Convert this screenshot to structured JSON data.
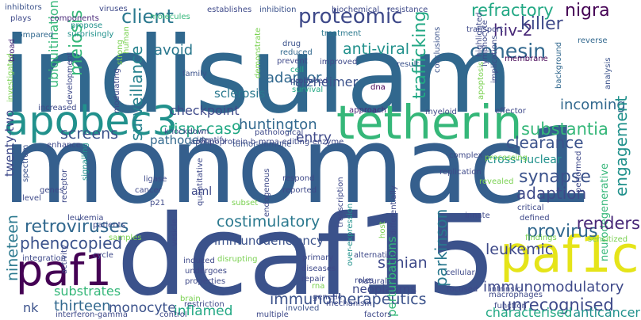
{
  "words": [
    {
      "t": "indisulam",
      "c": "#31688e"
    },
    {
      "t": "monomac1",
      "c": "#355f8d"
    },
    {
      "t": "dcaf15",
      "c": "#3b528b"
    },
    {
      "t": "tetherin",
      "c": "#35b779"
    },
    {
      "t": "apobec3",
      "c": "#21918c"
    },
    {
      "t": "paf1c",
      "c": "#e5e419"
    },
    {
      "t": "paf1",
      "c": "#440154"
    },
    {
      "t": "proteomic",
      "c": "#3e4989"
    },
    {
      "t": "client",
      "c": "#2a788e"
    },
    {
      "t": "adaptor",
      "c": "#31688e"
    },
    {
      "t": "refractory",
      "c": "#22a884"
    },
    {
      "t": "hiv-2",
      "c": "#482878"
    },
    {
      "t": "nigra",
      "c": "#440154"
    },
    {
      "t": "killer",
      "c": "#3e4989"
    },
    {
      "t": "cohesin",
      "c": "#31688e"
    },
    {
      "t": "anti-viral",
      "c": "#21918c"
    },
    {
      "t": "meiosis",
      "c": "#35b779"
    },
    {
      "t": "avoid",
      "c": "#2a788e"
    },
    {
      "t": "sclerosis",
      "c": "#2a788e"
    },
    {
      "t": "surveillance",
      "c": "#26828e"
    },
    {
      "t": "trafficking",
      "c": "#22a884"
    },
    {
      "t": "incoming",
      "c": "#31688e"
    },
    {
      "t": "substantia",
      "c": "#35b779"
    },
    {
      "t": "clearance",
      "c": "#3b528b"
    },
    {
      "t": "cross-nuclear",
      "c": "#21918c"
    },
    {
      "t": "engagement",
      "c": "#21918c"
    },
    {
      "t": "synapse",
      "c": "#3b528b"
    },
    {
      "t": "adaption",
      "c": "#3e4989"
    },
    {
      "t": "neurodegenerative",
      "c": "#35b779"
    },
    {
      "t": "huntington",
      "c": "#31688e"
    },
    {
      "t": "checkpoint",
      "c": "#3e4989"
    },
    {
      "t": "crispr-cas9",
      "c": "#22a884"
    },
    {
      "t": "screens",
      "c": "#3b528b"
    },
    {
      "t": "pathogen",
      "c": "#31688e"
    },
    {
      "t": "entry",
      "c": "#3e4989"
    },
    {
      "t": "alzheimer",
      "c": "#3b528b"
    },
    {
      "t": "ubiquitination",
      "c": "#35b779"
    },
    {
      "t": "twenty-two",
      "c": "#3e4989"
    },
    {
      "t": "retroviruses",
      "c": "#31688e"
    },
    {
      "t": "phenocopied",
      "c": "#3b528b"
    },
    {
      "t": "costimulatory",
      "c": "#2a788e"
    },
    {
      "t": "immunodeficiency",
      "c": "#3b528b"
    },
    {
      "t": "aml",
      "c": "#3e4989"
    },
    {
      "t": "provirus",
      "c": "#31688e"
    },
    {
      "t": "renders",
      "c": "#482878"
    },
    {
      "t": "leukemic",
      "c": "#3e4989"
    },
    {
      "t": "simian",
      "c": "#3e4989"
    },
    {
      "t": "immunomodulatory",
      "c": "#3e4989"
    },
    {
      "t": "parkinson",
      "c": "#2a788e"
    },
    {
      "t": "unrecognised",
      "c": "#3e4989"
    },
    {
      "t": "characterised",
      "c": "#22a884"
    },
    {
      "t": "nineteen",
      "c": "#2a788e"
    },
    {
      "t": "thirteen",
      "c": "#31688e"
    },
    {
      "t": "inflamed",
      "c": "#22a884"
    },
    {
      "t": "immunotherapeutics",
      "c": "#3b528b"
    },
    {
      "t": "neoplasms",
      "c": "#3e4989"
    },
    {
      "t": "substrates",
      "c": "#35b779"
    },
    {
      "t": "monocyte",
      "c": "#3b528b"
    },
    {
      "t": "nk",
      "c": "#3b528b"
    },
    {
      "t": "anticancer",
      "c": "#21918c"
    },
    {
      "t": "perturbations",
      "c": "#35b779"
    },
    {
      "t": "interferon-gamma",
      "c": "#3e4989"
    },
    {
      "t": "apolipoprotein-b-mrna-editing-enzyme",
      "c": "#3e4989"
    },
    {
      "t": "tumor-immune",
      "c": "#3b528b"
    },
    {
      "t": "over-expression",
      "c": "#21918c"
    },
    {
      "t": "inhibitors",
      "c": "#3b528b"
    },
    {
      "t": "plays",
      "c": "#3e4989"
    },
    {
      "t": "components",
      "c": "#482878"
    },
    {
      "t": "viruses",
      "c": "#3e4989"
    },
    {
      "t": "molecules",
      "c": "#35b779"
    },
    {
      "t": "establishes",
      "c": "#3e4989"
    },
    {
      "t": "inhibition",
      "c": "#3b528b"
    },
    {
      "t": "biochemical",
      "c": "#3e4989"
    },
    {
      "t": "resistance",
      "c": "#3e4989"
    },
    {
      "t": "transport",
      "c": "#3e4989"
    },
    {
      "t": "propose",
      "c": "#21918c"
    },
    {
      "t": "compared",
      "c": "#31688e"
    },
    {
      "t": "surprisingly",
      "c": "#21918c"
    },
    {
      "t": "treatment",
      "c": "#2a788e"
    },
    {
      "t": "drug",
      "c": "#3b528b"
    },
    {
      "t": "reduced",
      "c": "#31688e"
    },
    {
      "t": "prevent",
      "c": "#3e4989"
    },
    {
      "t": "cell",
      "c": "#22a884"
    },
    {
      "t": "produced",
      "c": "#3e4989"
    },
    {
      "t": "survival",
      "c": "#22a884"
    },
    {
      "t": "improved",
      "c": "#3e4989"
    },
    {
      "t": "dna",
      "c": "#440154"
    },
    {
      "t": "result",
      "c": "#3b528b"
    },
    {
      "t": "investigated",
      "c": "#7ad151"
    },
    {
      "t": "broad",
      "c": "#482878"
    },
    {
      "t": "strong",
      "c": "#7ad151"
    },
    {
      "t": "human",
      "c": "#7ad151"
    },
    {
      "t": "family",
      "c": "#3b528b"
    },
    {
      "t": "development",
      "c": "#3e4989"
    },
    {
      "t": "demonstrate",
      "c": "#7ad151"
    },
    {
      "t": "conclusions",
      "c": "#3b528b"
    },
    {
      "t": "implications",
      "c": "#3e4989"
    },
    {
      "t": "lymphocyte",
      "c": "#3e4989"
    },
    {
      "t": "membrane",
      "c": "#440154"
    },
    {
      "t": "background",
      "c": "#31688e"
    },
    {
      "t": "analysis",
      "c": "#3b528b"
    },
    {
      "t": "reverse",
      "c": "#31688e"
    },
    {
      "t": "highlighted",
      "c": "#3e4989"
    },
    {
      "t": "involved",
      "c": "#3b528b"
    },
    {
      "t": "apoptosis",
      "c": "#7ad151"
    },
    {
      "t": "increased",
      "c": "#3e4989"
    },
    {
      "t": "modulating",
      "c": "#3e4989"
    },
    {
      "t": "approach",
      "c": "#482878"
    },
    {
      "t": "myeloid",
      "c": "#3e4989"
    },
    {
      "t": "effector",
      "c": "#3e4989"
    },
    {
      "t": "enhance",
      "c": "#3e4989"
    },
    {
      "t": "knockdown",
      "c": "#3e4989"
    },
    {
      "t": "pathological",
      "c": "#3e4989"
    },
    {
      "t": "identify",
      "c": "#3e4989"
    },
    {
      "t": "complex",
      "c": "#3e4989"
    },
    {
      "t": "processing",
      "c": "#7ad151"
    },
    {
      "t": "spectrum",
      "c": "#3b528b"
    },
    {
      "t": "signalling",
      "c": "#21918c"
    },
    {
      "t": "genes",
      "c": "#3e4989"
    },
    {
      "t": "ligase",
      "c": "#3e4989"
    },
    {
      "t": "cancer",
      "c": "#3e4989"
    },
    {
      "t": "p21",
      "c": "#3e4989"
    },
    {
      "t": "quantitative",
      "c": "#3e4989"
    },
    {
      "t": "respond",
      "c": "#3e4989"
    },
    {
      "t": "reported",
      "c": "#3e4989"
    },
    {
      "t": "replication",
      "c": "#3e4989"
    },
    {
      "t": "revealed",
      "c": "#7ad151"
    },
    {
      "t": "performed",
      "c": "#3e4989"
    },
    {
      "t": "receptor",
      "c": "#3e4989"
    },
    {
      "t": "level",
      "c": "#3e4989"
    },
    {
      "t": "endogenous",
      "c": "#3e4989"
    },
    {
      "t": "transcription",
      "c": "#3e4989"
    },
    {
      "t": "differentially",
      "c": "#3e4989"
    },
    {
      "t": "critical",
      "c": "#3e4989"
    },
    {
      "t": "defined",
      "c": "#3e4989"
    },
    {
      "t": "leukemia",
      "c": "#3e4989"
    },
    {
      "t": "patients",
      "c": "#3e4989"
    },
    {
      "t": "subset",
      "c": "#7ad151"
    },
    {
      "t": "innate",
      "c": "#3e4989"
    },
    {
      "t": "samples",
      "c": "#7ad151"
    },
    {
      "t": "findings",
      "c": "#7ad151"
    },
    {
      "t": "sensitized",
      "c": "#7ad151"
    },
    {
      "t": "host",
      "c": "#7ad151"
    },
    {
      "t": "integration",
      "c": "#3e4989"
    },
    {
      "t": "cycle",
      "c": "#3e4989"
    },
    {
      "t": "activity",
      "c": "#3e4989"
    },
    {
      "t": "vesicle",
      "c": "#3e4989"
    },
    {
      "t": "induced",
      "c": "#3e4989"
    },
    {
      "t": "undergoes",
      "c": "#3e4989"
    },
    {
      "t": "properties",
      "c": "#3e4989"
    },
    {
      "t": "disrupting",
      "c": "#7ad151"
    },
    {
      "t": "primary",
      "c": "#3e4989"
    },
    {
      "t": "diseases",
      "c": "#3e4989"
    },
    {
      "t": "repair",
      "c": "#3e4989"
    },
    {
      "t": "alternative",
      "c": "#3e4989"
    },
    {
      "t": "roles",
      "c": "#3e4989"
    },
    {
      "t": "natural",
      "c": "#3e4989"
    },
    {
      "t": "rna",
      "c": "#7ad151"
    },
    {
      "t": "genetic",
      "c": "#3e4989"
    },
    {
      "t": "mechanism",
      "c": "#3e4989"
    },
    {
      "t": "focused",
      "c": "#3e4989"
    },
    {
      "t": "cellular",
      "c": "#3e4989"
    },
    {
      "t": "intrinsic",
      "c": "#3e4989"
    },
    {
      "t": "macrophages",
      "c": "#3e4989"
    },
    {
      "t": "function",
      "c": "#3e4989"
    },
    {
      "t": "factors",
      "c": "#3e4989"
    },
    {
      "t": "brain",
      "c": "#7ad151"
    },
    {
      "t": "restriction",
      "c": "#3e4989"
    },
    {
      "t": "multiple",
      "c": "#3e4989"
    },
    {
      "t": "control",
      "c": "#3e4989"
    }
  ]
}
